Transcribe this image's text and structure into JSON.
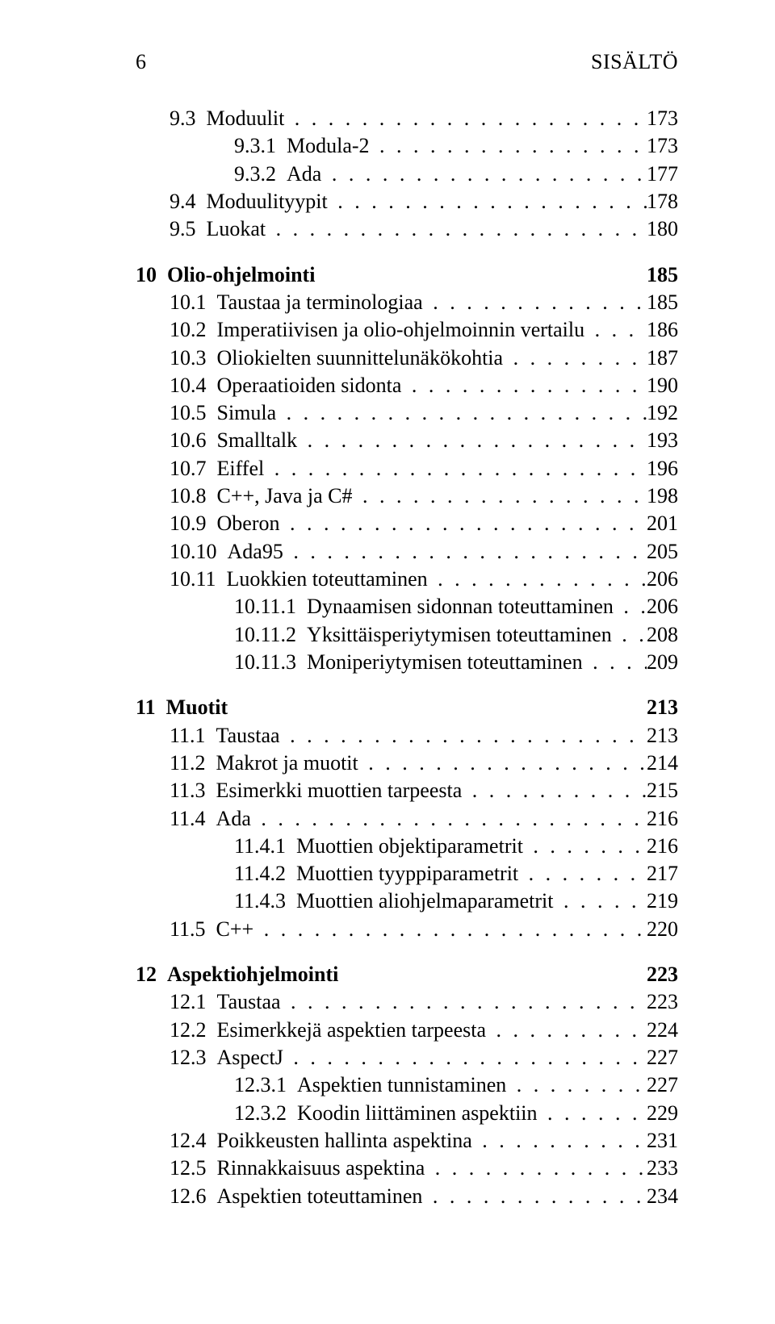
{
  "header": {
    "page_number": "6",
    "title": "SISÄLTÖ"
  },
  "style": {
    "font_family": "Times New Roman",
    "body_fontsize_pt": 20,
    "text_color": "#000000",
    "background_color": "#ffffff",
    "dot_leader_char": "."
  },
  "toc": [
    {
      "level": "sec",
      "num": "9.3",
      "label": "Moduulit",
      "page": "173"
    },
    {
      "level": "sub",
      "num": "9.3.1",
      "label": "Modula-2",
      "page": "173"
    },
    {
      "level": "sub",
      "num": "9.3.2",
      "label": "Ada",
      "page": "177"
    },
    {
      "level": "sec",
      "num": "9.4",
      "label": "Moduulityypit",
      "page": "178"
    },
    {
      "level": "sec",
      "num": "9.5",
      "label": "Luokat",
      "page": "180"
    },
    {
      "level": "chapter",
      "num": "10",
      "label": "Olio-ohjelmointi",
      "page": "185"
    },
    {
      "level": "sec",
      "num": "10.1",
      "label": "Taustaa ja terminologiaa",
      "page": "185"
    },
    {
      "level": "sec",
      "num": "10.2",
      "label": "Imperatiivisen ja olio-ohjelmoinnin vertailu",
      "page": "186"
    },
    {
      "level": "sec",
      "num": "10.3",
      "label": "Oliokielten suunnittelunäkökohtia",
      "page": "187"
    },
    {
      "level": "sec",
      "num": "10.4",
      "label": "Operaatioiden sidonta",
      "page": "190"
    },
    {
      "level": "sec",
      "num": "10.5",
      "label": "Simula",
      "page": "192"
    },
    {
      "level": "sec",
      "num": "10.6",
      "label": "Smalltalk",
      "page": "193"
    },
    {
      "level": "sec",
      "num": "10.7",
      "label": "Eiffel",
      "page": "196"
    },
    {
      "level": "sec",
      "num": "10.8",
      "label": "C++, Java ja C#",
      "page": "198"
    },
    {
      "level": "sec",
      "num": "10.9",
      "label": "Oberon",
      "page": "201"
    },
    {
      "level": "sec",
      "num": "10.10",
      "label": "Ada95",
      "page": "205"
    },
    {
      "level": "sec",
      "num": "10.11",
      "label": "Luokkien toteuttaminen",
      "page": "206"
    },
    {
      "level": "sub",
      "num": "10.11.1",
      "label": "Dynaamisen sidonnan toteuttaminen",
      "page": "206"
    },
    {
      "level": "sub",
      "num": "10.11.2",
      "label": "Yksittäisperiytymisen toteuttaminen",
      "page": "208"
    },
    {
      "level": "sub",
      "num": "10.11.3",
      "label": "Moniperiytymisen toteuttaminen",
      "page": "209"
    },
    {
      "level": "chapter",
      "num": "11",
      "label": "Muotit",
      "page": "213"
    },
    {
      "level": "sec",
      "num": "11.1",
      "label": "Taustaa",
      "page": "213"
    },
    {
      "level": "sec",
      "num": "11.2",
      "label": "Makrot ja muotit",
      "page": "214"
    },
    {
      "level": "sec",
      "num": "11.3",
      "label": "Esimerkki muottien tarpeesta",
      "page": "215"
    },
    {
      "level": "sec",
      "num": "11.4",
      "label": "Ada",
      "page": "216"
    },
    {
      "level": "sub",
      "num": "11.4.1",
      "label": "Muottien objektiparametrit",
      "page": "216"
    },
    {
      "level": "sub",
      "num": "11.4.2",
      "label": "Muottien tyyppiparametrit",
      "page": "217"
    },
    {
      "level": "sub",
      "num": "11.4.3",
      "label": "Muottien aliohjelmaparametrit",
      "page": "219"
    },
    {
      "level": "sec",
      "num": "11.5",
      "label": "C++",
      "page": "220"
    },
    {
      "level": "chapter",
      "num": "12",
      "label": "Aspektiohjelmointi",
      "page": "223"
    },
    {
      "level": "sec",
      "num": "12.1",
      "label": "Taustaa",
      "page": "223"
    },
    {
      "level": "sec",
      "num": "12.2",
      "label": "Esimerkkejä aspektien tarpeesta",
      "page": "224"
    },
    {
      "level": "sec",
      "num": "12.3",
      "label": "AspectJ",
      "page": "227"
    },
    {
      "level": "sub",
      "num": "12.3.1",
      "label": "Aspektien tunnistaminen",
      "page": "227"
    },
    {
      "level": "sub",
      "num": "12.3.2",
      "label": "Koodin liittäminen aspektiin",
      "page": "229"
    },
    {
      "level": "sec",
      "num": "12.4",
      "label": "Poikkeusten hallinta aspektina",
      "page": "231"
    },
    {
      "level": "sec",
      "num": "12.5",
      "label": "Rinnakkaisuus aspektina",
      "page": "233"
    },
    {
      "level": "sec",
      "num": "12.6",
      "label": "Aspektien toteuttaminen",
      "page": "234"
    }
  ]
}
